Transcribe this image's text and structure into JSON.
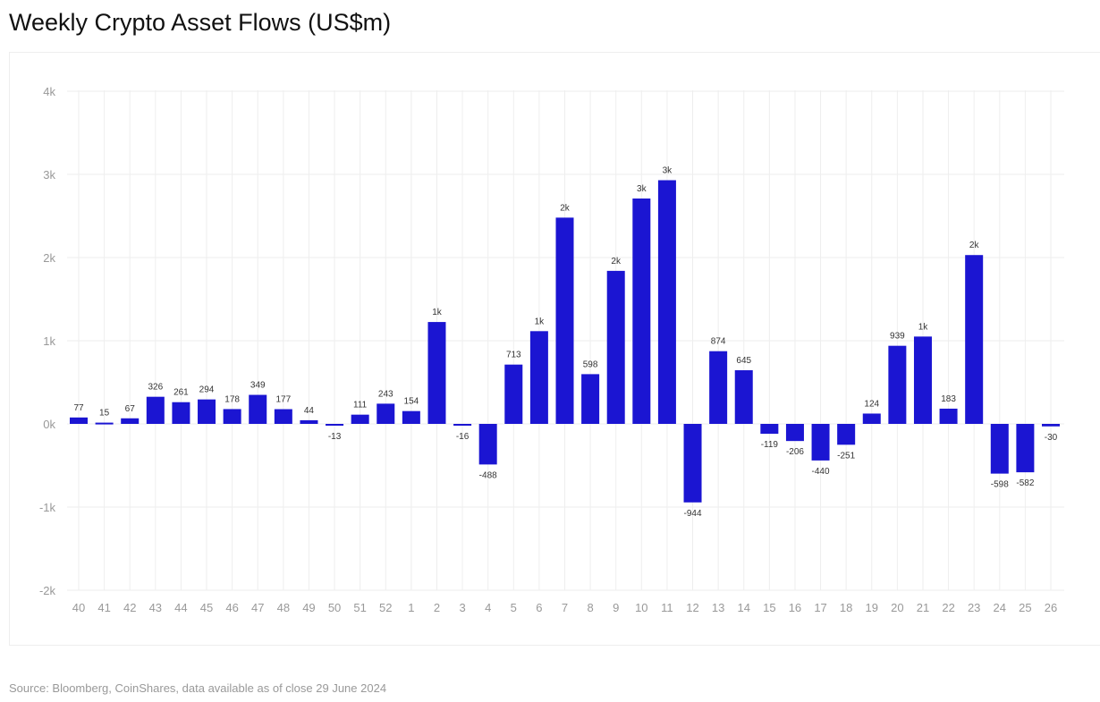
{
  "chart_data": {
    "type": "bar",
    "title": "Weekly Crypto Asset Flows (US$m)",
    "xlabel": "",
    "ylabel": "",
    "ylim": [
      -2000,
      4000
    ],
    "yticks": [
      -2000,
      -1000,
      0,
      1000,
      2000,
      3000,
      4000
    ],
    "ytick_labels": [
      "-2k",
      "-1k",
      "0k",
      "1k",
      "2k",
      "3k",
      "4k"
    ],
    "grid": true,
    "bar_color": "#1b15d2",
    "categories": [
      "40",
      "41",
      "42",
      "43",
      "44",
      "45",
      "46",
      "47",
      "48",
      "49",
      "50",
      "51",
      "52",
      "1",
      "2",
      "3",
      "4",
      "5",
      "6",
      "7",
      "8",
      "9",
      "10",
      "11",
      "12",
      "13",
      "14",
      "15",
      "16",
      "17",
      "18",
      "19",
      "20",
      "21",
      "22",
      "23",
      "24",
      "25",
      "26"
    ],
    "values": [
      77,
      15,
      67,
      326,
      261,
      294,
      178,
      349,
      177,
      44,
      -13,
      111,
      243,
      154,
      1225,
      -16,
      -488,
      713,
      1115,
      2480,
      598,
      1840,
      2710,
      2930,
      -944,
      874,
      645,
      -119,
      -206,
      -440,
      -251,
      124,
      939,
      1050,
      183,
      2030,
      -598,
      -582,
      -30
    ],
    "data_labels": [
      "77",
      "15",
      "67",
      "326",
      "261",
      "294",
      "178",
      "349",
      "177",
      "44",
      "-13",
      "111",
      "243",
      "154",
      "1k",
      "-16",
      "-488",
      "713",
      "1k",
      "2k",
      "598",
      "2k",
      "3k",
      "3k",
      "-944",
      "874",
      "645",
      "-119",
      "-206",
      "-440",
      "-251",
      "124",
      "939",
      "1k",
      "183",
      "2k",
      "-598",
      "-582",
      "-30"
    ]
  },
  "source": "Source: Bloomberg, CoinShares, data available as of close 29 June 2024"
}
